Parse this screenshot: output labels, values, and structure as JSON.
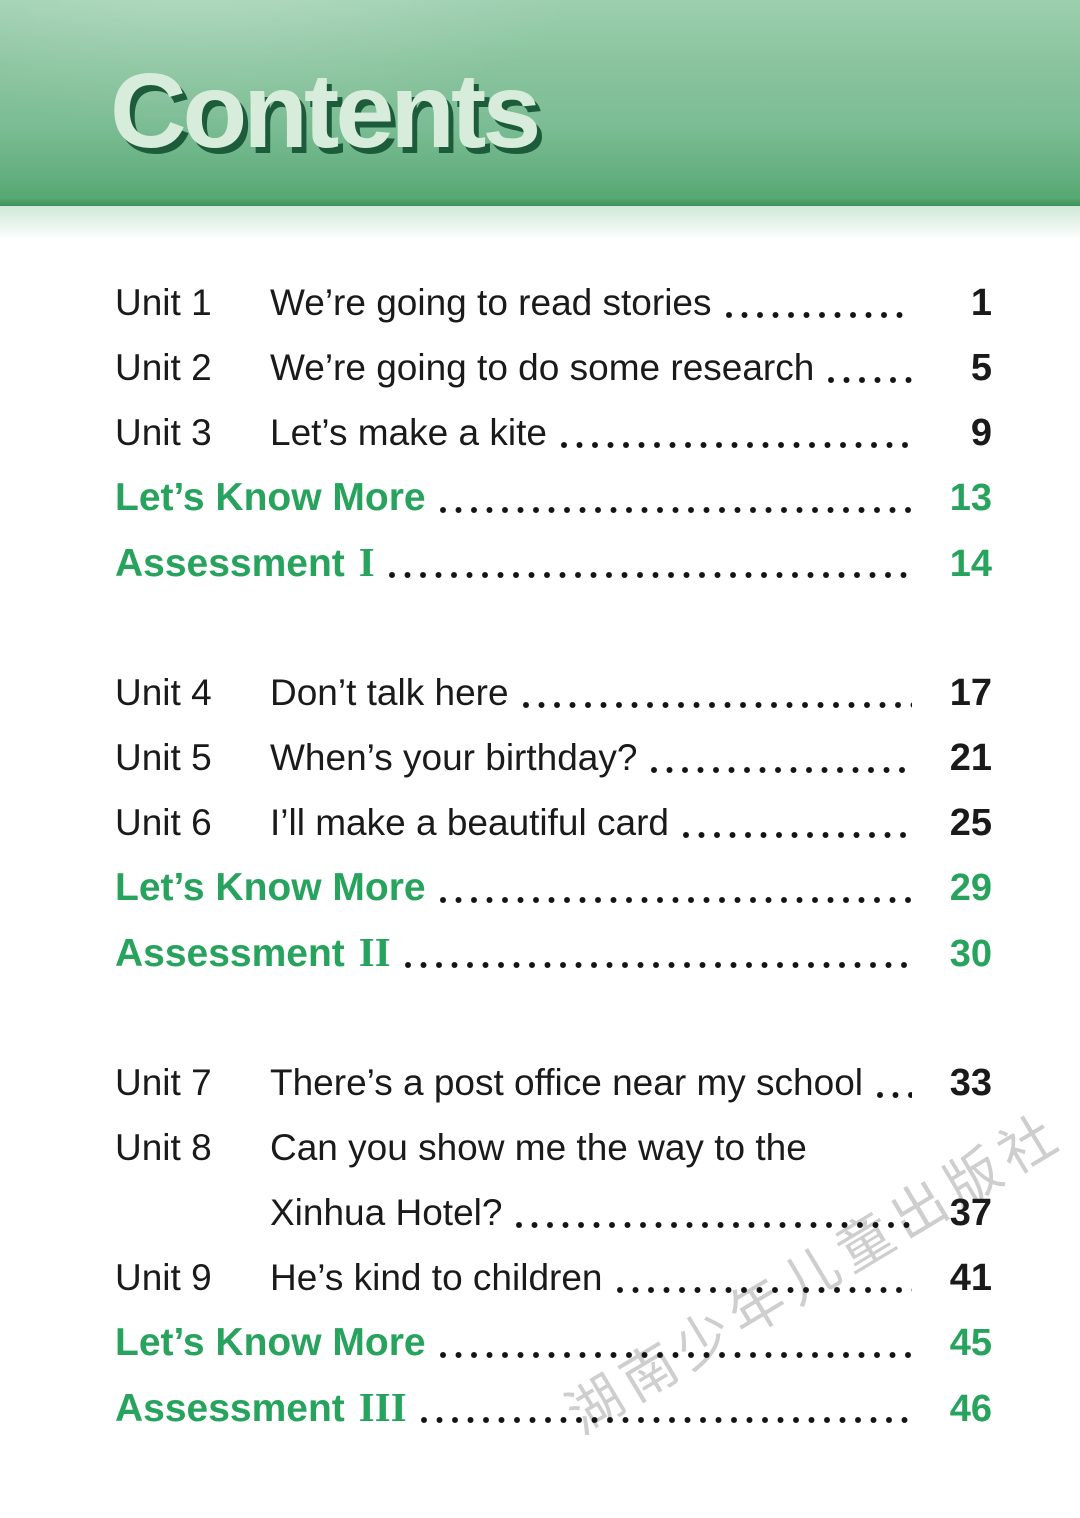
{
  "page": {
    "title": "Contents",
    "watermark": "湖南少年儿童出版社",
    "colors": {
      "accent_green": "#28a35e",
      "text_color": "#1a1a1a",
      "band_top": "#9ccfae",
      "band_mid": "#7cbd95",
      "band_low": "#55a972",
      "band_edge": "#3f8f58",
      "title_fill": "#d8ecdc",
      "title_shadow": "#1d5c3b",
      "fade_top": "#cfe8d8",
      "watermark_color": "#b5b5b5"
    }
  },
  "toc": {
    "sections": [
      {
        "rows": [
          {
            "kind": "unit",
            "label": "Unit 1",
            "title": "We’re going to read stories",
            "page": "1"
          },
          {
            "kind": "unit",
            "label": "Unit 2",
            "title": "We’re going to do some research",
            "page": "5"
          },
          {
            "kind": "unit",
            "label": "Unit 3",
            "title": "Let’s make a kite",
            "page": "9"
          },
          {
            "kind": "extra",
            "title": "Let’s Know More",
            "page": "13"
          },
          {
            "kind": "extra",
            "title": "Assessment",
            "numeral": "I",
            "page": "14"
          }
        ]
      },
      {
        "rows": [
          {
            "kind": "unit",
            "label": "Unit 4",
            "title": "Don’t talk here",
            "page": "17"
          },
          {
            "kind": "unit",
            "label": "Unit 5",
            "title": "When’s your birthday?",
            "page": "21"
          },
          {
            "kind": "unit",
            "label": "Unit 6",
            "title": "I’ll make a beautiful card",
            "page": "25"
          },
          {
            "kind": "extra",
            "title": "Let’s Know More",
            "page": "29"
          },
          {
            "kind": "extra",
            "title": "Assessment",
            "numeral": "II",
            "page": "30"
          }
        ]
      },
      {
        "rows": [
          {
            "kind": "unit",
            "label": "Unit 7",
            "title": "There’s a post office near my school",
            "page": "33"
          },
          {
            "kind": "unit",
            "label": "Unit 8",
            "title": "Can you show me the way to the",
            "page": ""
          },
          {
            "kind": "continuation",
            "label": "",
            "title": "Xinhua Hotel?",
            "page": "37"
          },
          {
            "kind": "unit",
            "label": "Unit 9",
            "title": "He’s kind to children",
            "page": "41"
          },
          {
            "kind": "extra",
            "title": "Let’s Know More",
            "page": "45"
          },
          {
            "kind": "extra",
            "title": "Assessment",
            "numeral": "III",
            "page": "46"
          }
        ]
      }
    ]
  }
}
